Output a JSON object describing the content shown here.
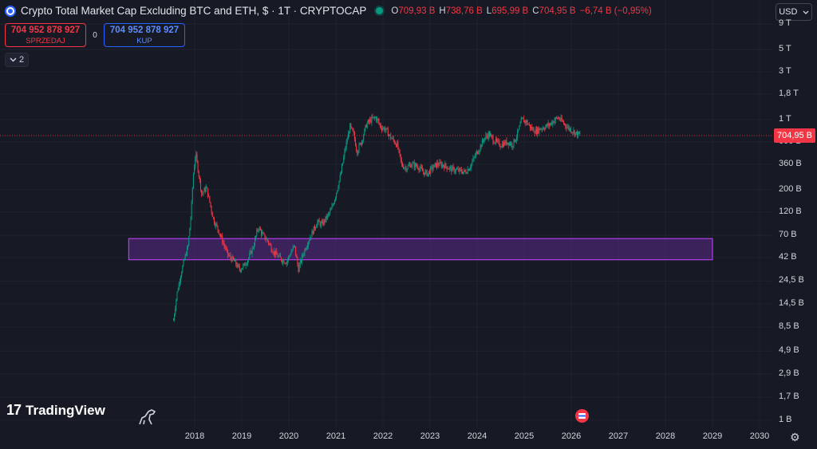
{
  "header": {
    "title": "Crypto Total Market Cap Excluding BTC and ETH, $ · 1T · CRYPTOCAP",
    "ohlc": [
      {
        "key": "O",
        "value": "709,93 B"
      },
      {
        "key": "H",
        "value": "738,76 B"
      },
      {
        "key": "L",
        "value": "695,99 B"
      },
      {
        "key": "C",
        "value": "704,95 B"
      }
    ],
    "change": "−6,74 B (−0,95%)",
    "symbol_icon": "cryptocap-icon",
    "status_color": "#089981"
  },
  "trade": {
    "sell_price": "704 952 878 927",
    "sell_label": "SPRZEDAJ",
    "spread": "0",
    "buy_price": "704 952 878 927",
    "buy_label": "KUP"
  },
  "collapse_count": "2",
  "currency": "USD",
  "current_price_tag": "704,95 B",
  "branding": "TradingView",
  "colors": {
    "up": "#089981",
    "down": "#f23645",
    "zone_fill": "#5b2a86",
    "zone_border": "#b13ee8",
    "background": "#171a24",
    "price_line": "#f23645"
  },
  "chart_data": {
    "type": "candlestick",
    "timeframe": "1W",
    "y_scale": "log",
    "y_ticks": [
      "9 T",
      "5 T",
      "3 T",
      "1,8 T",
      "1 T",
      "600 B",
      "360 B",
      "200 B",
      "120 B",
      "70 B",
      "42 B",
      "24,5 B",
      "14,5 B",
      "8,5 B",
      "4,9 B",
      "2,9 B",
      "1,7 B",
      "1 B"
    ],
    "x_ticks": [
      "2018",
      "2019",
      "2020",
      "2021",
      "2022",
      "2023",
      "2024",
      "2025",
      "2026",
      "2027",
      "2028",
      "2029",
      "2030"
    ],
    "current_price": 704.95,
    "current_price_unit": "B",
    "zone": {
      "from_year": 2016.6,
      "to_year": 2029.0,
      "low_b": 40,
      "high_b": 65
    },
    "series_path_b": [
      [
        2017.55,
        10
      ],
      [
        2017.62,
        18
      ],
      [
        2017.7,
        28
      ],
      [
        2017.78,
        40
      ],
      [
        2017.86,
        55
      ],
      [
        2017.92,
        110
      ],
      [
        2017.97,
        280
      ],
      [
        2018.02,
        460
      ],
      [
        2018.08,
        300
      ],
      [
        2018.15,
        180
      ],
      [
        2018.25,
        210
      ],
      [
        2018.32,
        150
      ],
      [
        2018.4,
        100
      ],
      [
        2018.5,
        80
      ],
      [
        2018.6,
        60
      ],
      [
        2018.7,
        45
      ],
      [
        2018.85,
        38
      ],
      [
        2018.95,
        32
      ],
      [
        2019.05,
        35
      ],
      [
        2019.15,
        42
      ],
      [
        2019.25,
        55
      ],
      [
        2019.35,
        85
      ],
      [
        2019.45,
        70
      ],
      [
        2019.55,
        62
      ],
      [
        2019.65,
        50
      ],
      [
        2019.75,
        44
      ],
      [
        2019.85,
        40
      ],
      [
        2019.95,
        38
      ],
      [
        2020.05,
        48
      ],
      [
        2020.12,
        55
      ],
      [
        2020.2,
        32
      ],
      [
        2020.3,
        45
      ],
      [
        2020.4,
        60
      ],
      [
        2020.5,
        75
      ],
      [
        2020.6,
        95
      ],
      [
        2020.7,
        90
      ],
      [
        2020.8,
        105
      ],
      [
        2020.9,
        125
      ],
      [
        2021.0,
        180
      ],
      [
        2021.1,
        280
      ],
      [
        2021.2,
        520
      ],
      [
        2021.3,
        850
      ],
      [
        2021.38,
        700
      ],
      [
        2021.45,
        480
      ],
      [
        2021.55,
        620
      ],
      [
        2021.65,
        900
      ],
      [
        2021.75,
        1000
      ],
      [
        2021.85,
        1050
      ],
      [
        2021.95,
        850
      ],
      [
        2022.05,
        800
      ],
      [
        2022.15,
        680
      ],
      [
        2022.3,
        560
      ],
      [
        2022.4,
        350
      ],
      [
        2022.5,
        330
      ],
      [
        2022.6,
        360
      ],
      [
        2022.75,
        340
      ],
      [
        2022.85,
        300
      ],
      [
        2022.95,
        290
      ],
      [
        2023.05,
        330
      ],
      [
        2023.15,
        360
      ],
      [
        2023.3,
        350
      ],
      [
        2023.45,
        320
      ],
      [
        2023.6,
        310
      ],
      [
        2023.75,
        300
      ],
      [
        2023.85,
        340
      ],
      [
        2023.95,
        430
      ],
      [
        2024.05,
        520
      ],
      [
        2024.15,
        650
      ],
      [
        2024.25,
        720
      ],
      [
        2024.35,
        620
      ],
      [
        2024.5,
        560
      ],
      [
        2024.65,
        600
      ],
      [
        2024.75,
        560
      ],
      [
        2024.85,
        700
      ],
      [
        2024.95,
        1000
      ],
      [
        2025.05,
        950
      ],
      [
        2025.15,
        820
      ],
      [
        2025.25,
        760
      ],
      [
        2025.35,
        820
      ],
      [
        2025.45,
        850
      ],
      [
        2025.55,
        900
      ],
      [
        2025.65,
        1000
      ],
      [
        2025.72,
        1050
      ],
      [
        2025.8,
        960
      ],
      [
        2025.88,
        880
      ],
      [
        2025.95,
        820
      ],
      [
        2026.05,
        760
      ],
      [
        2026.12,
        720
      ],
      [
        2026.2,
        705
      ]
    ]
  }
}
